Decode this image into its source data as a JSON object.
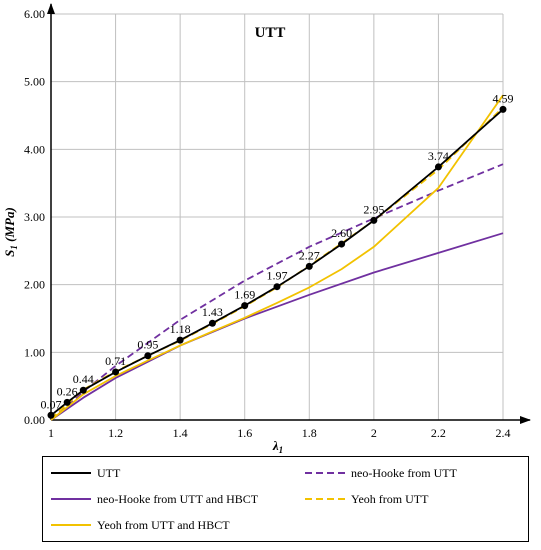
{
  "chart_data": {
    "type": "line",
    "title": "UTT",
    "xlabel": "λ",
    "xlabel_sub": "1",
    "ylabel": "S",
    "ylabel_sub": "1",
    "ylabel_unit": " (MPa)",
    "xlim": [
      1,
      2.4
    ],
    "ylim": [
      0,
      6
    ],
    "x_ticks": [
      1,
      1.2,
      1.4,
      1.6,
      1.8,
      2,
      2.2,
      2.4
    ],
    "x_tick_labels": [
      "1",
      "1.2",
      "1.4",
      "1.6",
      "1.8",
      "2",
      "2.2",
      "2.4"
    ],
    "y_ticks": [
      0,
      1,
      2,
      3,
      4,
      5,
      6
    ],
    "y_tick_labels": [
      "0.00",
      "1.00",
      "2.00",
      "3.00",
      "4.00",
      "5.00",
      "6.00"
    ],
    "grid": true,
    "legend_position": "bottom",
    "series": [
      {
        "name": "UTT",
        "color": "#000000",
        "style": "solid",
        "markers": true,
        "x": [
          1.0,
          1.05,
          1.1,
          1.2,
          1.3,
          1.4,
          1.5,
          1.6,
          1.7,
          1.8,
          1.9,
          2.0,
          2.2,
          2.4
        ],
        "y": [
          0.07,
          0.26,
          0.44,
          0.71,
          0.95,
          1.18,
          1.43,
          1.69,
          1.97,
          2.27,
          2.6,
          2.95,
          3.74,
          4.59
        ],
        "labels": [
          "0.07",
          "0.26",
          "0.44",
          "0.71",
          "0.95",
          "1.18",
          "1.43",
          "1.69",
          "1.97",
          "2.27",
          "2.60",
          "2.95",
          "3.74",
          "4.59"
        ]
      },
      {
        "name": "neo-Hooke from UTT",
        "color": "#7030a0",
        "style": "dashed",
        "markers": false,
        "x": [
          1.0,
          1.1,
          1.2,
          1.4,
          1.6,
          1.8,
          2.0,
          2.2,
          2.4
        ],
        "y": [
          0.0,
          0.42,
          0.8,
          1.48,
          2.06,
          2.56,
          2.98,
          3.39,
          3.78
        ]
      },
      {
        "name": "neo-Hooke from UTT and HBCT",
        "color": "#7030a0",
        "style": "solid",
        "markers": false,
        "x": [
          1.0,
          1.1,
          1.2,
          1.4,
          1.6,
          1.8,
          2.0,
          2.2,
          2.4
        ],
        "y": [
          0.0,
          0.33,
          0.62,
          1.1,
          1.5,
          1.85,
          2.18,
          2.47,
          2.76
        ]
      },
      {
        "name": "Yeoh from UTT",
        "color": "#f2c200",
        "style": "dashed",
        "markers": false,
        "x": [
          1.0,
          1.1,
          1.2,
          1.3,
          1.4,
          1.5,
          1.6,
          1.7,
          1.8,
          1.9,
          2.0,
          2.2,
          2.4
        ],
        "y": [
          0.02,
          0.45,
          0.72,
          0.95,
          1.17,
          1.42,
          1.68,
          1.96,
          2.28,
          2.61,
          2.95,
          3.7,
          4.62
        ]
      },
      {
        "name": "Yeoh from UTT and HBCT",
        "color": "#f2c200",
        "style": "solid",
        "markers": false,
        "x": [
          1.0,
          1.1,
          1.2,
          1.3,
          1.4,
          1.5,
          1.6,
          1.7,
          1.8,
          1.9,
          2.0,
          2.2,
          2.4
        ],
        "y": [
          0.0,
          0.38,
          0.65,
          0.88,
          1.1,
          1.31,
          1.51,
          1.73,
          1.96,
          2.23,
          2.56,
          3.43,
          4.8
        ]
      }
    ]
  },
  "legend": {
    "items": [
      {
        "label": "UTT",
        "color": "#000000",
        "style": "solid"
      },
      {
        "label": "neo-Hooke from UTT",
        "color": "#7030a0",
        "style": "dashed"
      },
      {
        "label": "neo-Hooke from UTT and HBCT",
        "color": "#7030a0",
        "style": "solid"
      },
      {
        "label": "Yeoh from UTT",
        "color": "#f2c200",
        "style": "dashed"
      },
      {
        "label": "Yeoh from UTT and HBCT",
        "color": "#f2c200",
        "style": "solid"
      }
    ]
  }
}
